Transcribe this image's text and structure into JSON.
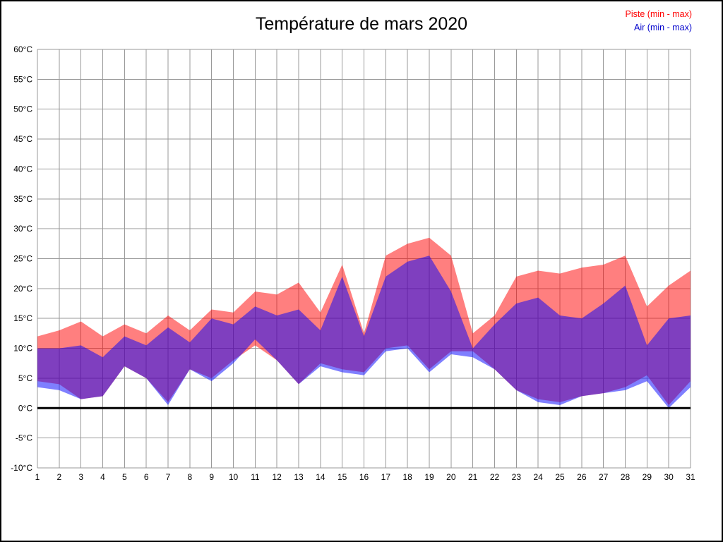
{
  "legend": {
    "position": "top-right",
    "colors": {
      "piste": "#ff0000",
      "air": "#0000cc"
    }
  },
  "chart_data": {
    "type": "area",
    "title": "Température de mars 2020",
    "x": [
      1,
      2,
      3,
      4,
      5,
      6,
      7,
      8,
      9,
      10,
      11,
      12,
      13,
      14,
      15,
      16,
      17,
      18,
      19,
      20,
      21,
      22,
      23,
      24,
      25,
      26,
      27,
      28,
      29,
      30,
      31
    ],
    "series": [
      {
        "name": "Piste (min - max)",
        "color": "rgba(255,0,0,0.5)",
        "min": [
          4.5,
          4,
          1.5,
          2,
          7,
          5,
          1,
          6.5,
          5,
          8,
          10.5,
          8,
          4,
          7.5,
          6.5,
          6,
          10,
          10.5,
          6.5,
          9.5,
          9.5,
          6.5,
          3,
          1.5,
          1,
          2,
          2.5,
          3.5,
          5.5,
          0.5,
          4.5
        ],
        "max": [
          12,
          13,
          14.5,
          12,
          14,
          12.5,
          15.5,
          13,
          16.5,
          16,
          19.5,
          19,
          21,
          16,
          24,
          12.5,
          25.5,
          27.5,
          28.5,
          25.5,
          12.5,
          15.5,
          22,
          23,
          22.5,
          23.5,
          24,
          25.5,
          17,
          20.5,
          23
        ]
      },
      {
        "name": "Air (min - max)",
        "color": "rgba(0,0,255,0.5)",
        "min": [
          3.5,
          3,
          1.5,
          2,
          7,
          5,
          0.5,
          6.5,
          4.5,
          7.5,
          11.5,
          8,
          4,
          7,
          6,
          5.5,
          9.5,
          10,
          6,
          9,
          8.5,
          6.5,
          3,
          1,
          0.5,
          2,
          2.5,
          3,
          4.5,
          0,
          3.5
        ],
        "max": [
          10,
          10,
          10.5,
          8.5,
          12,
          10.5,
          13.5,
          11,
          15,
          14,
          17,
          15.5,
          16.5,
          13,
          22,
          12,
          22,
          24.5,
          25.5,
          19.5,
          10,
          14,
          17.5,
          18.5,
          15.5,
          15,
          17.5,
          20.5,
          10.5,
          15,
          15.5
        ]
      }
    ],
    "ylim": [
      -10,
      60
    ],
    "ytick_step": 5,
    "ytick_suffix": "°C",
    "grid": true,
    "grid_color": "#999999",
    "zero_line": true,
    "legend_position": "top-right"
  }
}
